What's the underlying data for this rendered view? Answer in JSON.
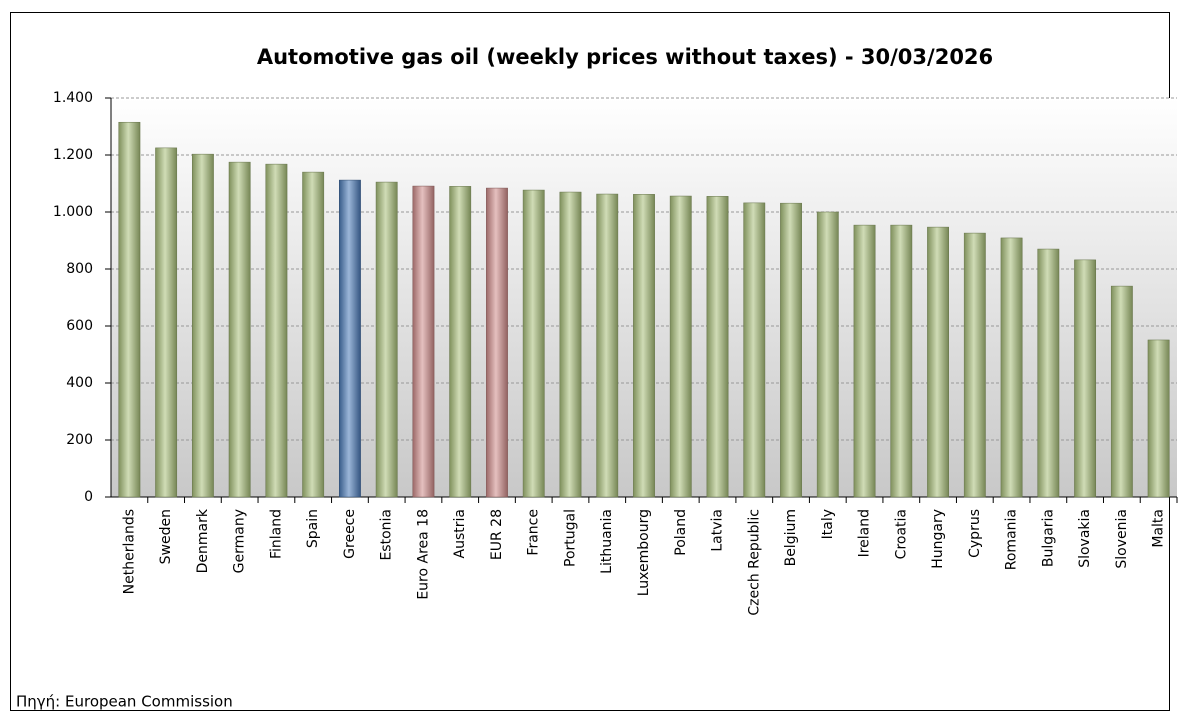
{
  "chart_data": {
    "type": "bar",
    "title": "Automotive gas oil (weekly prices without taxes) - 30/03/2026",
    "categories": [
      "Netherlands",
      "Sweden",
      "Denmark",
      "Germany",
      "Finland",
      "Spain",
      "Greece",
      "Estonia",
      "Euro Area 18",
      "Austria",
      "EUR 28",
      "France",
      "Portugal",
      "Lithuania",
      "Luxembourg",
      "Poland",
      "Latvia",
      "Czech Republic",
      "Belgium",
      "Italy",
      "Ireland",
      "Croatia",
      "Hungary",
      "Cyprus",
      "Romania",
      "Bulgaria",
      "Slovakia",
      "Slovenia",
      "Malta"
    ],
    "values": [
      1315,
      1225,
      1203,
      1175,
      1168,
      1140,
      1112,
      1105,
      1091,
      1090,
      1084,
      1077,
      1070,
      1063,
      1062,
      1056,
      1055,
      1032,
      1031,
      1000,
      954,
      954,
      947,
      926,
      909,
      870,
      832,
      740,
      551
    ],
    "colors": [
      "#a9c07a",
      "#a9c07a",
      "#a9c07a",
      "#a9c07a",
      "#a9c07a",
      "#a9c07a",
      "#4a7ab8",
      "#a9c07a",
      "#d08c8a",
      "#a9c07a",
      "#d08c8a",
      "#a9c07a",
      "#a9c07a",
      "#a9c07a",
      "#a9c07a",
      "#a9c07a",
      "#a9c07a",
      "#a9c07a",
      "#a9c07a",
      "#a9c07a",
      "#a9c07a",
      "#a9c07a",
      "#a9c07a",
      "#a9c07a",
      "#a9c07a",
      "#a9c07a",
      "#a9c07a",
      "#a9c07a",
      "#a9c07a"
    ],
    "ylim": [
      0,
      1400
    ],
    "yticks": [
      0,
      200,
      400,
      600,
      800,
      {
        "value": 1000,
        "label": "1.000"
      },
      {
        "value": 1200,
        "label": "1.200"
      },
      {
        "value": 1400,
        "label": "1.400"
      }
    ],
    "grid": true,
    "source": "Πηγή: European Commission"
  }
}
